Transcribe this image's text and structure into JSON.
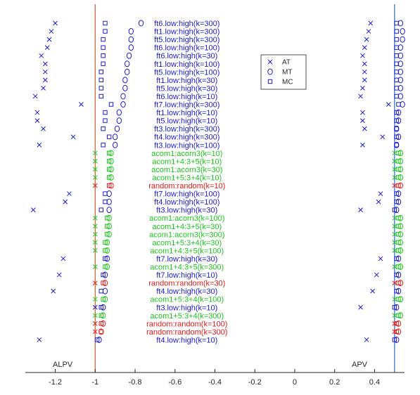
{
  "chart_data": {
    "type": "scatter",
    "xlim": [
      -1.35,
      0.55
    ],
    "xticks": [
      "-1.2",
      "-1",
      "-0.8",
      "-0.6",
      "-0.4",
      "-0.2",
      "0",
      "0.2",
      "0.4"
    ],
    "xtick_values": [
      -1.2,
      -1.0,
      -0.8,
      -0.6,
      -0.4,
      -0.2,
      0,
      0.2,
      0.4
    ],
    "reference_lines": [
      {
        "name": "ALPV",
        "x": -1.0,
        "color": "#c0602a"
      },
      {
        "name": "APV",
        "x": 0.5,
        "color": "#2a6cc0"
      }
    ],
    "legend": {
      "placement": "top-center",
      "entries": [
        {
          "label": "AT",
          "marker": "x"
        },
        {
          "label": "MT",
          "marker": "o"
        },
        {
          "label": "MC",
          "marker": "s"
        }
      ]
    },
    "group_colors": {
      "ft": "#1a1ad6",
      "acorn": "#19c619",
      "random": "#e01a1a"
    },
    "rows": [
      {
        "label": "ft6.low:high(k=300)",
        "group": "ft",
        "alpv_at": -1.2,
        "alpv_mt": -0.77,
        "alpv_mc": -0.95,
        "apv_at": 0.38,
        "apv_mt": 0.53,
        "apv_mc": 0.51
      },
      {
        "label": "ft1.low:high(k=300)",
        "group": "ft",
        "alpv_at": -1.22,
        "alpv_mt": -0.82,
        "alpv_mc": -0.95,
        "apv_at": 0.37,
        "apv_mt": 0.54,
        "apv_mc": 0.51
      },
      {
        "label": "ft5.low:high(k=300)",
        "group": "ft",
        "alpv_at": -1.23,
        "alpv_mt": -0.82,
        "alpv_mc": -0.96,
        "apv_at": 0.36,
        "apv_mt": 0.54,
        "apv_mc": 0.51
      },
      {
        "label": "ft6.low:high(k=100)",
        "group": "ft",
        "alpv_at": -1.24,
        "alpv_mt": -0.82,
        "alpv_mc": -0.96,
        "apv_at": 0.35,
        "apv_mt": 0.53,
        "apv_mc": 0.51
      },
      {
        "label": "ft6.low:high(k=30)",
        "group": "ft",
        "alpv_at": -1.27,
        "alpv_mt": -0.83,
        "alpv_mc": -0.96,
        "apv_at": 0.34,
        "apv_mt": 0.53,
        "apv_mc": 0.51
      },
      {
        "label": "ft1.low:high(k=100)",
        "group": "ft",
        "alpv_at": -1.25,
        "alpv_mt": -0.84,
        "alpv_mc": -0.96,
        "apv_at": 0.35,
        "apv_mt": 0.53,
        "apv_mc": 0.51
      },
      {
        "label": "ft5.low:high(k=100)",
        "group": "ft",
        "alpv_at": -1.25,
        "alpv_mt": -0.84,
        "alpv_mc": -0.97,
        "apv_at": 0.35,
        "apv_mt": 0.53,
        "apv_mc": 0.51
      },
      {
        "label": "ft1.low:high(k=30)",
        "group": "ft",
        "alpv_at": -1.25,
        "alpv_mt": -0.85,
        "alpv_mc": -0.97,
        "apv_at": 0.35,
        "apv_mt": 0.53,
        "apv_mc": 0.51
      },
      {
        "label": "ft5.low:high(k=30)",
        "group": "ft",
        "alpv_at": -1.26,
        "alpv_mt": -0.85,
        "alpv_mc": -0.97,
        "apv_at": 0.34,
        "apv_mt": 0.53,
        "apv_mc": 0.51
      },
      {
        "label": "ft6.low:high(k=10)",
        "group": "ft",
        "alpv_at": -1.3,
        "alpv_mt": -0.86,
        "alpv_mc": -0.97,
        "apv_at": 0.33,
        "apv_mt": 0.53,
        "apv_mc": 0.51
      },
      {
        "label": "ft7.low:high(k=300)",
        "group": "ft",
        "alpv_at": -1.07,
        "alpv_mt": -0.86,
        "alpv_mc": -0.92,
        "apv_at": 0.47,
        "apv_mt": 0.54,
        "apv_mc": 0.52
      },
      {
        "label": "ft1.low:high(k=10)",
        "group": "ft",
        "alpv_at": -1.29,
        "alpv_mt": -0.88,
        "alpv_mc": -0.95,
        "apv_at": 0.34,
        "apv_mt": 0.52,
        "apv_mc": 0.51
      },
      {
        "label": "ft5.low:high(k=10)",
        "group": "ft",
        "alpv_at": -1.29,
        "alpv_mt": -0.88,
        "alpv_mc": -0.95,
        "apv_at": 0.34,
        "apv_mt": 0.52,
        "apv_mc": 0.51
      },
      {
        "label": "ft3.low:high(k=300)",
        "group": "ft",
        "alpv_at": -1.26,
        "alpv_mt": -0.89,
        "alpv_mc": -0.96,
        "apv_at": 0.35,
        "apv_mt": 0.51,
        "apv_mc": 0.51
      },
      {
        "label": "ft4.low:high(k=300)",
        "group": "ft",
        "alpv_at": -1.11,
        "alpv_mt": -0.9,
        "alpv_mc": -0.93,
        "apv_at": 0.44,
        "apv_mt": 0.52,
        "apv_mc": 0.51
      },
      {
        "label": "ft3.low:high(k=100)",
        "group": "ft",
        "alpv_at": -1.28,
        "alpv_mt": -0.9,
        "alpv_mc": -0.96,
        "apv_at": 0.34,
        "apv_mt": 0.51,
        "apv_mc": 0.51
      },
      {
        "label": "acom1:acorn3(k=10)",
        "group": "acorn",
        "alpv_at": -1.0,
        "alpv_mt": -0.92,
        "alpv_mc": -0.93,
        "apv_at": 0.5,
        "apv_mt": 0.53,
        "apv_mc": 0.52
      },
      {
        "label": "acom1+4:3+5(k=10)",
        "group": "acorn",
        "alpv_at": -1.0,
        "alpv_mt": -0.92,
        "alpv_mc": -0.93,
        "apv_at": 0.5,
        "apv_mt": 0.53,
        "apv_mc": 0.52
      },
      {
        "label": "acom1:acorn3(k=30)",
        "group": "acorn",
        "alpv_at": -1.0,
        "alpv_mt": -0.92,
        "alpv_mc": -0.93,
        "apv_at": 0.5,
        "apv_mt": 0.53,
        "apv_mc": 0.52
      },
      {
        "label": "acom1+5:3+4(k=10)",
        "group": "acorn",
        "alpv_at": -1.0,
        "alpv_mt": -0.92,
        "alpv_mc": -0.93,
        "apv_at": 0.5,
        "apv_mt": 0.53,
        "apv_mc": 0.52
      },
      {
        "label": "random:random(k=10)",
        "group": "random",
        "alpv_at": -1.0,
        "alpv_mt": -0.92,
        "alpv_mc": -0.93,
        "apv_at": 0.5,
        "apv_mt": 0.53,
        "apv_mc": 0.52
      },
      {
        "label": "ft7.low:high(k=100)",
        "group": "ft",
        "alpv_at": -1.13,
        "alpv_mt": -0.93,
        "alpv_mc": -0.95,
        "apv_at": 0.43,
        "apv_mt": 0.52,
        "apv_mc": 0.51
      },
      {
        "label": "ft4.low:high(k=100)",
        "group": "ft",
        "alpv_at": -1.15,
        "alpv_mt": -0.93,
        "alpv_mc": -0.95,
        "apv_at": 0.42,
        "apv_mt": 0.52,
        "apv_mc": 0.51
      },
      {
        "label": "ft3.low:high(k=30)",
        "group": "ft",
        "alpv_at": -1.31,
        "alpv_mt": -0.93,
        "alpv_mc": -0.97,
        "apv_at": 0.33,
        "apv_mt": 0.51,
        "apv_mc": 0.5
      },
      {
        "label": "acom1:acorn3(k=100)",
        "group": "acorn",
        "alpv_at": -1.0,
        "alpv_mt": -0.93,
        "alpv_mc": -0.94,
        "apv_at": 0.5,
        "apv_mt": 0.53,
        "apv_mc": 0.52
      },
      {
        "label": "acom1+4:3+5(k=30)",
        "group": "acorn",
        "alpv_at": -1.0,
        "alpv_mt": -0.93,
        "alpv_mc": -0.94,
        "apv_at": 0.5,
        "apv_mt": 0.53,
        "apv_mc": 0.52
      },
      {
        "label": "acom1:acorn3(k=300)",
        "group": "acorn",
        "alpv_at": -1.0,
        "alpv_mt": -0.93,
        "alpv_mc": -0.94,
        "apv_at": 0.5,
        "apv_mt": 0.53,
        "apv_mc": 0.52
      },
      {
        "label": "acom1+5:3+4(k=30)",
        "group": "acorn",
        "alpv_at": -1.0,
        "alpv_mt": -0.94,
        "alpv_mc": -0.95,
        "apv_at": 0.5,
        "apv_mt": 0.53,
        "apv_mc": 0.52
      },
      {
        "label": "acom1+4:3+5(k=100)",
        "group": "acorn",
        "alpv_at": -1.0,
        "alpv_mt": -0.94,
        "alpv_mc": -0.95,
        "apv_at": 0.5,
        "apv_mt": 0.53,
        "apv_mc": 0.52
      },
      {
        "label": "ft7.low:high(k=30)",
        "group": "ft",
        "alpv_at": -1.16,
        "alpv_mt": -0.94,
        "alpv_mc": -0.95,
        "apv_at": 0.43,
        "apv_mt": 0.52,
        "apv_mc": 0.51
      },
      {
        "label": "acom1+4:3+5(k=300)",
        "group": "acorn",
        "alpv_at": -1.0,
        "alpv_mt": -0.94,
        "alpv_mc": -0.95,
        "apv_at": 0.5,
        "apv_mt": 0.53,
        "apv_mc": 0.52
      },
      {
        "label": "ft7.low:high(k=10)",
        "group": "ft",
        "alpv_at": -1.18,
        "alpv_mt": -0.95,
        "alpv_mc": -0.96,
        "apv_at": 0.41,
        "apv_mt": 0.52,
        "apv_mc": 0.51
      },
      {
        "label": "random:random(k=30)",
        "group": "random",
        "alpv_at": -1.0,
        "alpv_mt": -0.95,
        "alpv_mc": -0.96,
        "apv_at": 0.5,
        "apv_mt": 0.53,
        "apv_mc": 0.52
      },
      {
        "label": "ft4.low:high(k=30)",
        "group": "ft",
        "alpv_at": -1.21,
        "alpv_mt": -0.95,
        "alpv_mc": -0.97,
        "apv_at": 0.39,
        "apv_mt": 0.52,
        "apv_mc": 0.51
      },
      {
        "label": "acom1+5:3+4(k=100)",
        "group": "acorn",
        "alpv_at": -1.0,
        "alpv_mt": -0.95,
        "alpv_mc": -0.96,
        "apv_at": 0.5,
        "apv_mt": 0.53,
        "apv_mc": 0.52
      },
      {
        "label": "ft3.low:high(k=10)",
        "group": "ft",
        "alpv_at": -1.0,
        "alpv_mt": -0.96,
        "alpv_mc": -0.97,
        "apv_at": 0.33,
        "apv_mt": 0.51,
        "apv_mc": 0.5
      },
      {
        "label": "acom1+5:3+4(k=300)",
        "group": "acorn",
        "alpv_at": -1.0,
        "alpv_mt": -0.96,
        "alpv_mc": -0.97,
        "apv_at": 0.5,
        "apv_mt": 0.53,
        "apv_mc": 0.52
      },
      {
        "label": "random:random(k=100)",
        "group": "random",
        "alpv_at": -1.0,
        "alpv_mt": -0.96,
        "alpv_mc": -0.97,
        "apv_at": 0.5,
        "apv_mt": 0.52,
        "apv_mc": 0.51
      },
      {
        "label": "random:random(k=300)",
        "group": "random",
        "alpv_at": -1.0,
        "alpv_mt": -0.97,
        "alpv_mc": -0.97,
        "apv_at": 0.5,
        "apv_mt": 0.52,
        "apv_mc": 0.51
      },
      {
        "label": "ft4.low:high(k=10)",
        "group": "ft",
        "alpv_at": -1.28,
        "alpv_mt": -0.98,
        "alpv_mc": -0.99,
        "apv_at": 0.36,
        "apv_mt": 0.51,
        "apv_mc": 0.5
      }
    ]
  }
}
